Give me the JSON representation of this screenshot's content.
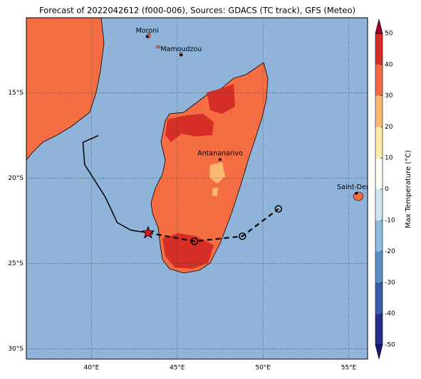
{
  "map": {
    "title": "Forecast of 2022042612 (f000-006), Sources: GDACS (TC track), GFS (Meteo)",
    "xlim": [
      36.2,
      56.1
    ],
    "ylim": [
      -30.6,
      -10.6
    ],
    "xticks": [
      {
        "value": 40,
        "label": "40°E"
      },
      {
        "value": 45,
        "label": "45°E"
      },
      {
        "value": 50,
        "label": "50°E"
      },
      {
        "value": 55,
        "label": "55°E"
      }
    ],
    "yticks": [
      {
        "value": -15,
        "label": "15°S"
      },
      {
        "value": -20,
        "label": "20°S"
      },
      {
        "value": -25,
        "label": "25°S"
      },
      {
        "value": -30,
        "label": "30°S"
      }
    ],
    "cities": [
      {
        "name": "Moroni",
        "lon": 43.25,
        "lat": -11.7
      },
      {
        "name": "Mamoudzou",
        "lon": 45.23,
        "lat": -12.78
      },
      {
        "name": "Antananarivo",
        "lon": 47.5,
        "lat": -18.9
      },
      {
        "name": "Saint-Denis",
        "lon": 55.45,
        "lat": -20.88
      }
    ],
    "track_past": {
      "lon": [
        40.4,
        39.5,
        39.6,
        40.8,
        41.5,
        42.3,
        43.3
      ],
      "lat": [
        -17.5,
        -17.9,
        -19.2,
        -21.1,
        -22.6,
        -23.05,
        -23.2
      ]
    },
    "track_forecast": {
      "lon": [
        43.3,
        46,
        48.8,
        50.9
      ],
      "lat": [
        -23.2,
        -23.7,
        -23.4,
        -21.8
      ]
    },
    "colorbar": {
      "label": "Max Temperature (°C)",
      "lim": [
        -50,
        50
      ],
      "ticks": [
        50,
        40,
        30,
        20,
        10,
        0,
        -10,
        -20,
        -30,
        -40,
        -50
      ],
      "colors": [
        "#23318b",
        "#3a5ba6",
        "#5d8ec3",
        "#91bbdc",
        "#cde6f0",
        "#fbfdf0",
        "#fee9a6",
        "#fdb872",
        "#f36b42",
        "#d52e27"
      ],
      "extend_low": "#1a1a7a",
      "extend_high": "#a50026"
    }
  }
}
